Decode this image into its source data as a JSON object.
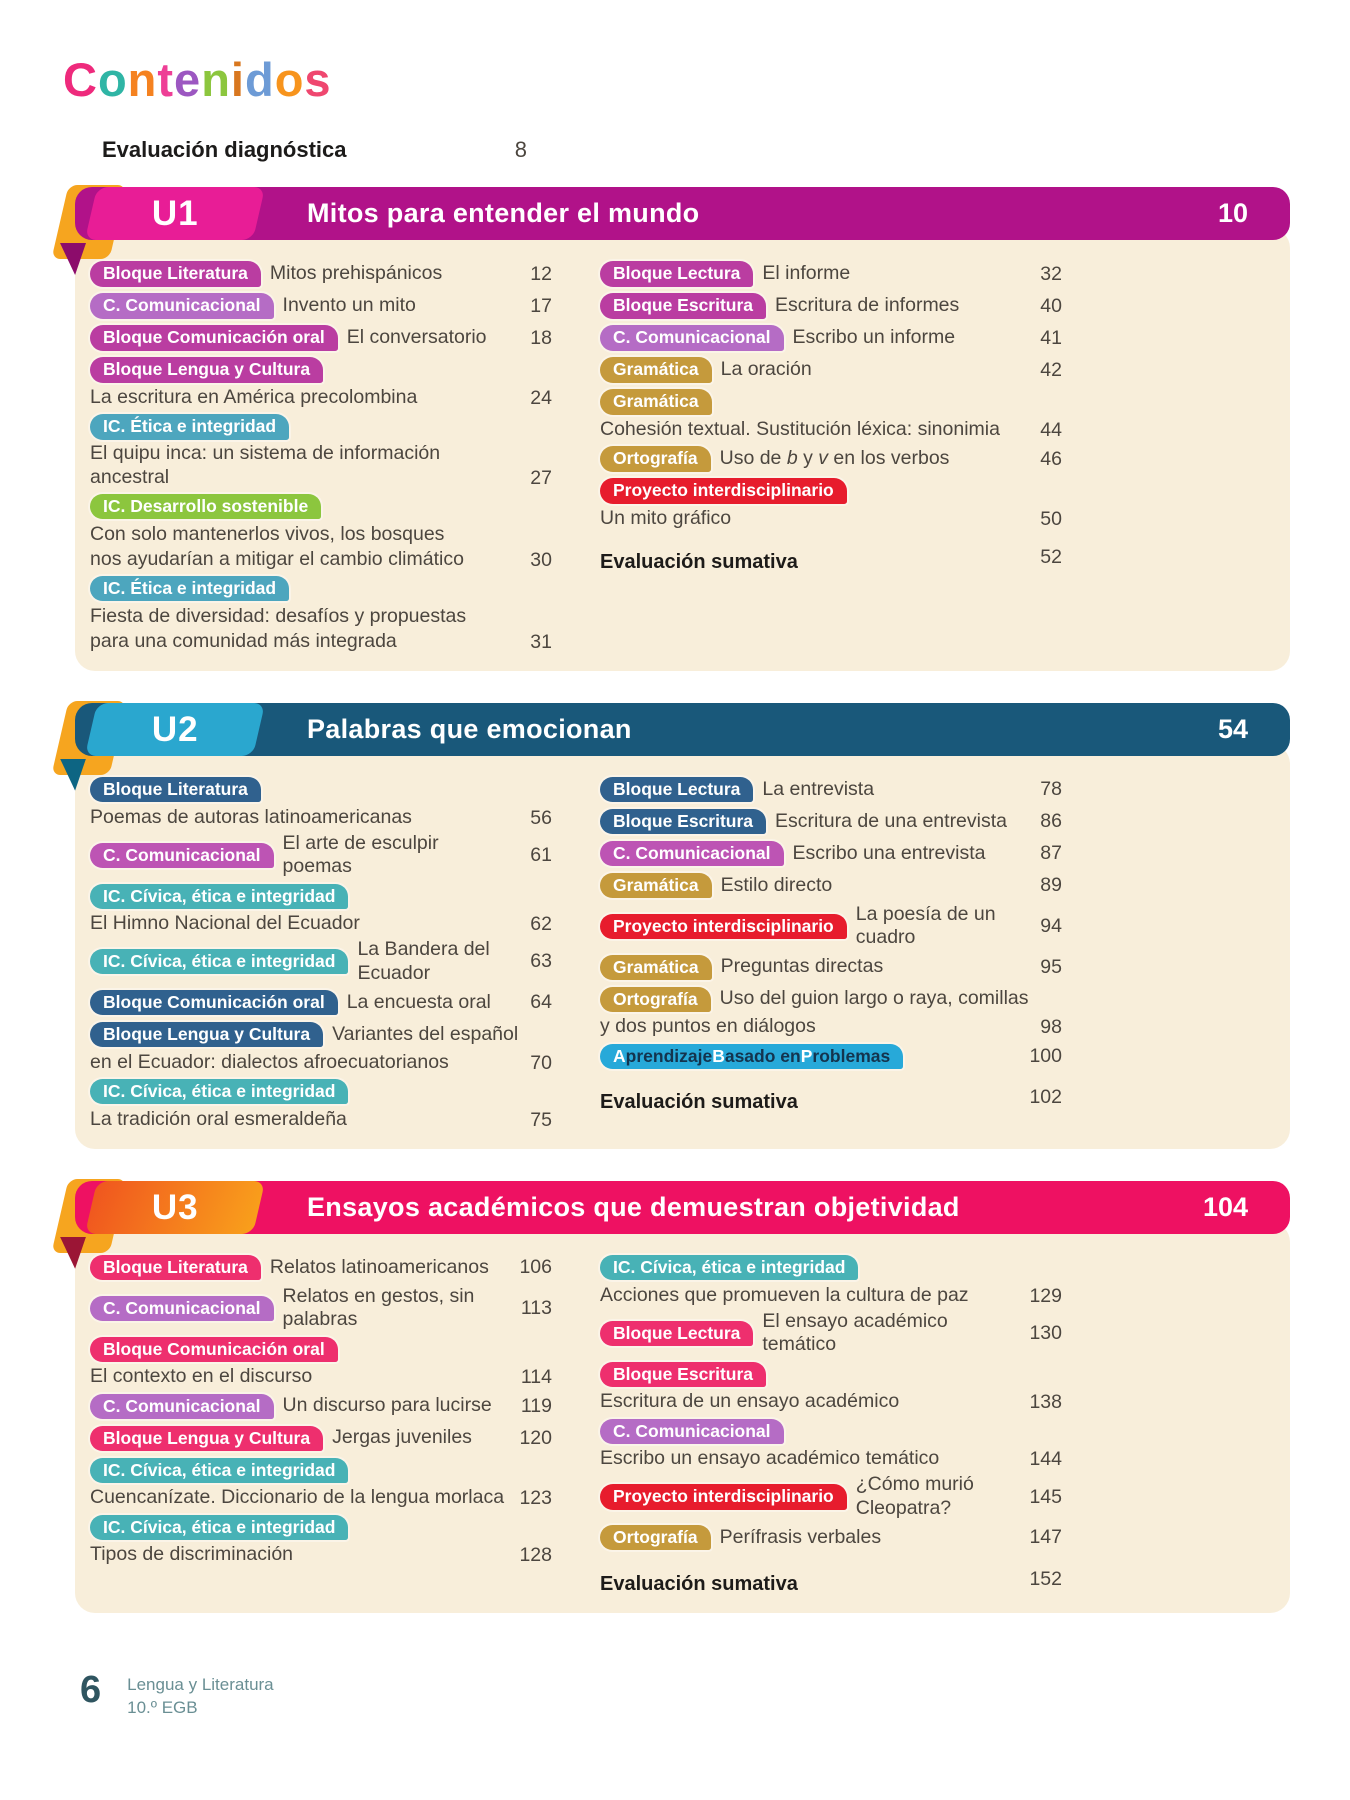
{
  "title_letters": [
    {
      "ch": "C",
      "color": "#ee2a7c"
    },
    {
      "ch": "o",
      "color": "#2fb5a5"
    },
    {
      "ch": "n",
      "color": "#f58220"
    },
    {
      "ch": "t",
      "color": "#ee3f96"
    },
    {
      "ch": "e",
      "color": "#9c57c1"
    },
    {
      "ch": "n",
      "color": "#8cc63e"
    },
    {
      "ch": "i",
      "color": "#d8771f"
    },
    {
      "ch": "d",
      "color": "#6d9bd6"
    },
    {
      "ch": "o",
      "color": "#f7941d"
    },
    {
      "ch": "s",
      "color": "#ef476f"
    }
  ],
  "diagnostic": {
    "label": "Evaluación diagnóstica",
    "page": "8"
  },
  "footer": {
    "page_number": "6",
    "line1": "Lengua y Literatura",
    "line2": "10.º EGB"
  },
  "units": [
    {
      "id": "U1",
      "title": "Mitos para entender el mundo",
      "page": "10",
      "colors": {
        "banner": "#b11289",
        "tab": "#e81d96",
        "tab2": "",
        "corner": "#f6a51f",
        "fold": "#8c0c6b"
      },
      "left": [
        {
          "pill": {
            "label": "Bloque Literatura",
            "bg": "#ba3da1"
          },
          "text": "Mitos prehispánicos",
          "page": "12"
        },
        {
          "pill": {
            "label": "C. Comunicacional",
            "bg": "#b56cc5"
          },
          "text": "Invento un mito",
          "page": "17"
        },
        {
          "pill": {
            "label": "Bloque Comunicación oral",
            "bg": "#ba3da1"
          },
          "text": "El conversatorio",
          "page": "18"
        },
        {
          "pill": {
            "label": "Bloque Lengua y Cultura",
            "bg": "#ba3da1"
          },
          "wrap": [
            "La escritura en América precolombina"
          ],
          "page": "24"
        },
        {
          "pill": {
            "label": "IC. Ética e integridad",
            "bg": "#4da6be"
          },
          "wrap": [
            "El quipu inca: un sistema de información ancestral"
          ],
          "page": "27"
        },
        {
          "pill": {
            "label": "IC. Desarrollo sostenible",
            "bg": "#8cc63e"
          },
          "wrap": [
            "Con solo mantenerlos vivos, los bosques",
            "nos ayudarían a mitigar el cambio climático"
          ],
          "page": "30"
        },
        {
          "pill": {
            "label": "IC. Ética e integridad",
            "bg": "#4da6be"
          },
          "wrap": [
            "Fiesta de diversidad: desafíos y propuestas",
            "para una comunidad más integrada"
          ],
          "page": "31"
        }
      ],
      "right": [
        {
          "pill": {
            "label": "Bloque Lectura",
            "bg": "#ba3da1"
          },
          "text": "El informe",
          "page": "32"
        },
        {
          "pill": {
            "label": "Bloque Escritura",
            "bg": "#ba3da1"
          },
          "text": "Escritura de informes",
          "page": "40"
        },
        {
          "pill": {
            "label": "C. Comunicacional",
            "bg": "#b56cc5"
          },
          "text": "Escribo un informe",
          "page": "41"
        },
        {
          "pill": {
            "label": "Gramática",
            "bg": "#c59a3c"
          },
          "text": "La oración",
          "page": "42"
        },
        {
          "pill": {
            "label": "Gramática",
            "bg": "#c59a3c"
          },
          "wrap": [
            "Cohesión textual. Sustitución léxica: sinonimia"
          ],
          "page": "44"
        },
        {
          "pill": {
            "label": "Ortografía",
            "bg": "#c59a3c"
          },
          "text": [
            {
              "t": "Uso de "
            },
            {
              "t": "b",
              "i": true
            },
            {
              "t": " y "
            },
            {
              "t": "v",
              "i": true
            },
            {
              "t": " en los verbos"
            }
          ],
          "page": "46"
        },
        {
          "pill": {
            "label": "Proyecto interdisciplinario",
            "bg": "#e71c2d"
          },
          "wrap": [
            "Un mito gráfico"
          ],
          "page": "50"
        },
        {
          "strong": true,
          "text": "Evaluación sumativa",
          "page": "52"
        }
      ]
    },
    {
      "id": "U2",
      "title": "Palabras que emocionan",
      "page": "54",
      "colors": {
        "banner": "#19587a",
        "tab": "#2aa7cf",
        "tab2": "",
        "corner": "#f6a51f",
        "fold": "#0d6583"
      },
      "left": [
        {
          "pill": {
            "label": "Bloque Literatura",
            "bg": "#30618e"
          },
          "wrap": [
            "Poemas de autoras latinoamericanas"
          ],
          "page": "56"
        },
        {
          "pill": {
            "label": "C. Comunicacional",
            "bg": "#bd54b4"
          },
          "text": "El arte de esculpir poemas",
          "page": "61"
        },
        {
          "pill": {
            "label": "IC. Cívica, ética e integridad",
            "bg": "#48b2b6"
          },
          "wrap": [
            "El Himno Nacional del Ecuador"
          ],
          "page": "62"
        },
        {
          "pill": {
            "label": "IC. Cívica, ética e integridad",
            "bg": "#48b2b6"
          },
          "text": "La Bandera del Ecuador",
          "page": "63"
        },
        {
          "pill": {
            "label": "Bloque Comunicación oral",
            "bg": "#30618e"
          },
          "text": "La encuesta oral",
          "page": "64"
        },
        {
          "pill": {
            "label": "Bloque Lengua y Cultura",
            "bg": "#30618e"
          },
          "text": "Variantes del español",
          "wrap": [
            "en el Ecuador: dialectos afroecuatorianos"
          ],
          "page": "70"
        },
        {
          "pill": {
            "label": "IC. Cívica, ética e integridad",
            "bg": "#48b2b6"
          },
          "wrap": [
            "La tradición oral esmeraldeña"
          ],
          "page": "75"
        }
      ],
      "right": [
        {
          "pill": {
            "label": "Bloque Lectura",
            "bg": "#30618e"
          },
          "text": "La entrevista",
          "page": "78"
        },
        {
          "pill": {
            "label": "Bloque Escritura",
            "bg": "#30618e"
          },
          "text": "Escritura de una entrevista",
          "page": "86"
        },
        {
          "pill": {
            "label": "C. Comunicacional",
            "bg": "#bd54b4"
          },
          "text": "Escribo una entrevista",
          "page": "87"
        },
        {
          "pill": {
            "label": "Gramática",
            "bg": "#c59a3c"
          },
          "text": "Estilo directo",
          "page": "89"
        },
        {
          "pill": {
            "label": "Proyecto interdisciplinario",
            "bg": "#e71c2d"
          },
          "text": "La poesía de un cuadro",
          "page": "94"
        },
        {
          "pill": {
            "label": "Gramática",
            "bg": "#c59a3c"
          },
          "text": "Preguntas directas",
          "page": "95"
        },
        {
          "pill": {
            "label": "Ortografía",
            "bg": "#c59a3c"
          },
          "text": "Uso del guion largo o raya, comillas",
          "wrap": [
            "y dos puntos en diálogos"
          ],
          "page": "98"
        },
        {
          "pill": {
            "bg": "#27a9d9",
            "abp": true,
            "parts": [
              {
                "t": "A",
                "hl": true
              },
              {
                "t": "prendizaje "
              },
              {
                "t": "B",
                "hl": true
              },
              {
                "t": "asado en "
              },
              {
                "t": "P",
                "hl": true
              },
              {
                "t": "roblemas"
              }
            ],
            "label": "Aprendizaje Basado en Problemas"
          },
          "text": "",
          "page": "100"
        },
        {
          "strong": true,
          "text": "Evaluación sumativa",
          "page": "102"
        }
      ]
    },
    {
      "id": "U3",
      "title": "Ensayos académicos que demuestran objetividad",
      "page": "104",
      "colors": {
        "banner": "#ee1162",
        "tab": "#f0561f",
        "tab2": "#f9a01b",
        "corner": "#f6a51f",
        "fold": "#9b1535"
      },
      "left": [
        {
          "pill": {
            "label": "Bloque Literatura",
            "bg": "#ee2f6e"
          },
          "text": "Relatos latinoamericanos",
          "page": "106"
        },
        {
          "pill": {
            "label": "C. Comunicacional",
            "bg": "#b56cc5"
          },
          "text": "Relatos en gestos, sin palabras",
          "page": "113"
        },
        {
          "pill": {
            "label": "Bloque Comunicación oral",
            "bg": "#ee2f6e"
          },
          "wrap": [
            "El contexto en el discurso"
          ],
          "page": "114"
        },
        {
          "pill": {
            "label": "C. Comunicacional",
            "bg": "#b56cc5"
          },
          "text": "Un discurso para lucirse",
          "page": "119"
        },
        {
          "pill": {
            "label": "Bloque Lengua y Cultura",
            "bg": "#ee2f6e"
          },
          "text": "Jergas juveniles",
          "page": "120"
        },
        {
          "pill": {
            "label": "IC. Cívica, ética e integridad",
            "bg": "#48b2b6"
          },
          "wrap": [
            "Cuencanízate. Diccionario de la lengua morlaca"
          ],
          "page": "123"
        },
        {
          "pill": {
            "label": "IC. Cívica, ética e integridad",
            "bg": "#48b2b6"
          },
          "wrap": [
            "Tipos de discriminación"
          ],
          "page": "128"
        }
      ],
      "right": [
        {
          "pill": {
            "label": "IC. Cívica, ética e integridad",
            "bg": "#48b2b6"
          },
          "wrap": [
            "Acciones que promueven la cultura de paz"
          ],
          "page": "129"
        },
        {
          "pill": {
            "label": "Bloque Lectura",
            "bg": "#ee2f6e"
          },
          "text": "El ensayo académico temático",
          "page": "130"
        },
        {
          "pill": {
            "label": "Bloque Escritura",
            "bg": "#ee2f6e"
          },
          "wrap": [
            "Escritura de un ensayo académico"
          ],
          "page": "138"
        },
        {
          "pill": {
            "label": "C. Comunicacional",
            "bg": "#b56cc5"
          },
          "wrap": [
            "Escribo un ensayo académico temático"
          ],
          "page": "144"
        },
        {
          "pill": {
            "label": "Proyecto interdisciplinario",
            "bg": "#e71c2d"
          },
          "text": "¿Cómo murió Cleopatra?",
          "page": "145"
        },
        {
          "pill": {
            "label": "Ortografía",
            "bg": "#c59a3c"
          },
          "text": "Perífrasis verbales",
          "page": "147"
        },
        {
          "strong": true,
          "text": "Evaluación sumativa",
          "page": "152"
        }
      ]
    }
  ]
}
